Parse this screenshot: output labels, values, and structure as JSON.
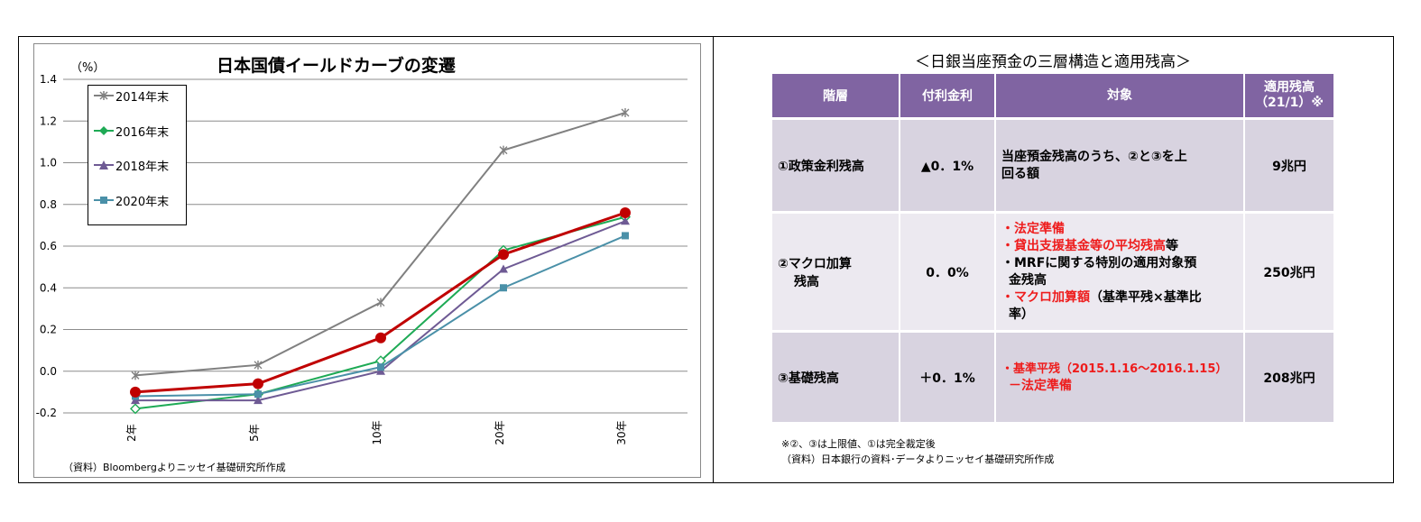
{
  "chart_data": {
    "type": "line",
    "title": "日本国債イールドカーブの変遷",
    "ylabel": "（%）",
    "ylim": [
      -0.2,
      1.4
    ],
    "yticks": [
      "1.4",
      "1.2",
      "1.0",
      "0.8",
      "0.6",
      "0.4",
      "0.2",
      "0.0",
      "-0.2"
    ],
    "categories": [
      "2年",
      "5年",
      "10年",
      "20年",
      "30年"
    ],
    "series": [
      {
        "name": "2014年末",
        "values": [
          -0.02,
          0.03,
          0.33,
          1.06,
          1.24
        ],
        "color": "#808080",
        "marker": "star"
      },
      {
        "name": "2016年末",
        "values": [
          -0.18,
          -0.11,
          0.05,
          0.58,
          0.74
        ],
        "color": "#1eaa55",
        "marker": "diamond"
      },
      {
        "name": "2018年末",
        "values": [
          -0.14,
          -0.14,
          0.0,
          0.49,
          0.72
        ],
        "color": "#6e5a94",
        "marker": "triangle"
      },
      {
        "name": "2020年末",
        "values": [
          -0.12,
          -0.11,
          0.02,
          0.4,
          0.65
        ],
        "color": "#4a90a8",
        "marker": "square"
      },
      {
        "name": "",
        "values": [
          -0.1,
          -0.06,
          0.16,
          0.56,
          0.76
        ],
        "color": "#c00000",
        "marker": "circle"
      }
    ],
    "legend": "top-left",
    "grid": true,
    "source": "（資料）Bloombergよりニッセイ基礎研究所作成"
  },
  "table": {
    "title": "＜日銀当座預金の三層構造と適用残高＞",
    "headers": {
      "layer": "階層",
      "rate": "付利金利",
      "target": "対象",
      "balance_1": "適用残高",
      "balance_2": "（21/1）※"
    },
    "rows": [
      {
        "layer": "①政策金利残高",
        "rate": "▲0．1%",
        "target_1": "当座預金残高のうち、②と③を上",
        "target_2": "回る額",
        "balance": "9兆円"
      },
      {
        "layer_1": "②マクロ加算",
        "layer_2": "残高",
        "rate": "0．0%",
        "t1": "・法定準備",
        "t2a": "・貸出支援基金等の平均残高",
        "t2b": "等",
        "t3": "・MRFに関する特別の適用対象預",
        "t3b": "金残高",
        "t4a": "・マクロ加算額",
        "t4b": "（基準平残×基準比",
        "t4c": "率）",
        "balance": "250兆円"
      },
      {
        "layer": "③基礎残高",
        "rate": "＋0．1%",
        "target_1": "・基準平残（2015.1.16～2016.1.15）",
        "target_2": "－法定準備",
        "balance": "208兆円"
      }
    ],
    "note_1": "※②、③は上限値、①は完全裁定後",
    "note_2": "（資料）日本銀行の資料･データよりニッセイ基礎研究所作成"
  }
}
